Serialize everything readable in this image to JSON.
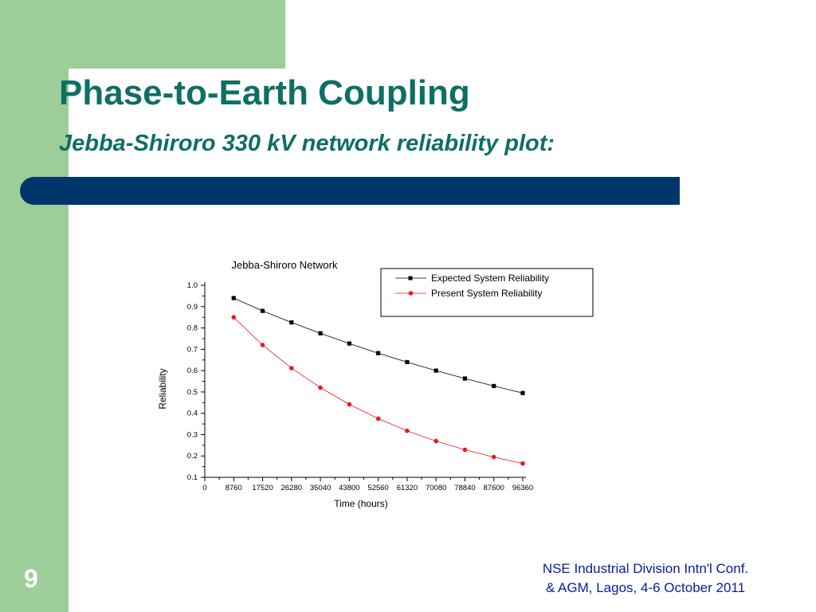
{
  "slide": {
    "title": "Phase-to-Earth Coupling",
    "subtitle": "Jebba-Shiroro 330 kV network reliability plot:",
    "page_number": "9",
    "footer_line1": "NSE Industrial Division Intn'l Conf.",
    "footer_line2": "& AGM, Lagos, 4-6 October 2011",
    "colors": {
      "sidebar": "#9dcd98",
      "title": "#0e6f63",
      "bar": "#00366a",
      "footer": "#0a1a9e"
    }
  },
  "chart_data": {
    "type": "line",
    "title": "Jebba-Shiroro Network",
    "xlabel": "Time (hours)",
    "ylabel": "Reliability",
    "xlim": [
      0,
      96360
    ],
    "ylim": [
      0.1,
      1.0
    ],
    "x_ticks": [
      0,
      8760,
      17520,
      26280,
      35040,
      43800,
      52560,
      61320,
      70080,
      78840,
      87600,
      96360
    ],
    "y_ticks": [
      "0.1",
      "0.2",
      "0.3",
      "0.4",
      "0.5",
      "0.6",
      "0.7",
      "0.8",
      "0.9",
      "1.0"
    ],
    "x": [
      8760,
      17520,
      26280,
      35040,
      43800,
      52560,
      61320,
      70080,
      78840,
      87600,
      96360
    ],
    "legend_position": "top-right",
    "grid": false,
    "series": [
      {
        "name": "Expected System Reliability",
        "color": "#000000",
        "marker": "square",
        "values": [
          0.94,
          0.88,
          0.826,
          0.775,
          0.727,
          0.682,
          0.64,
          0.6,
          0.563,
          0.528,
          0.495
        ]
      },
      {
        "name": "Present System Reliability",
        "color": "#e8191e",
        "marker": "circle",
        "values": [
          0.85,
          0.72,
          0.612,
          0.52,
          0.442,
          0.375,
          0.318,
          0.27,
          0.229,
          0.195,
          0.165
        ]
      }
    ]
  }
}
